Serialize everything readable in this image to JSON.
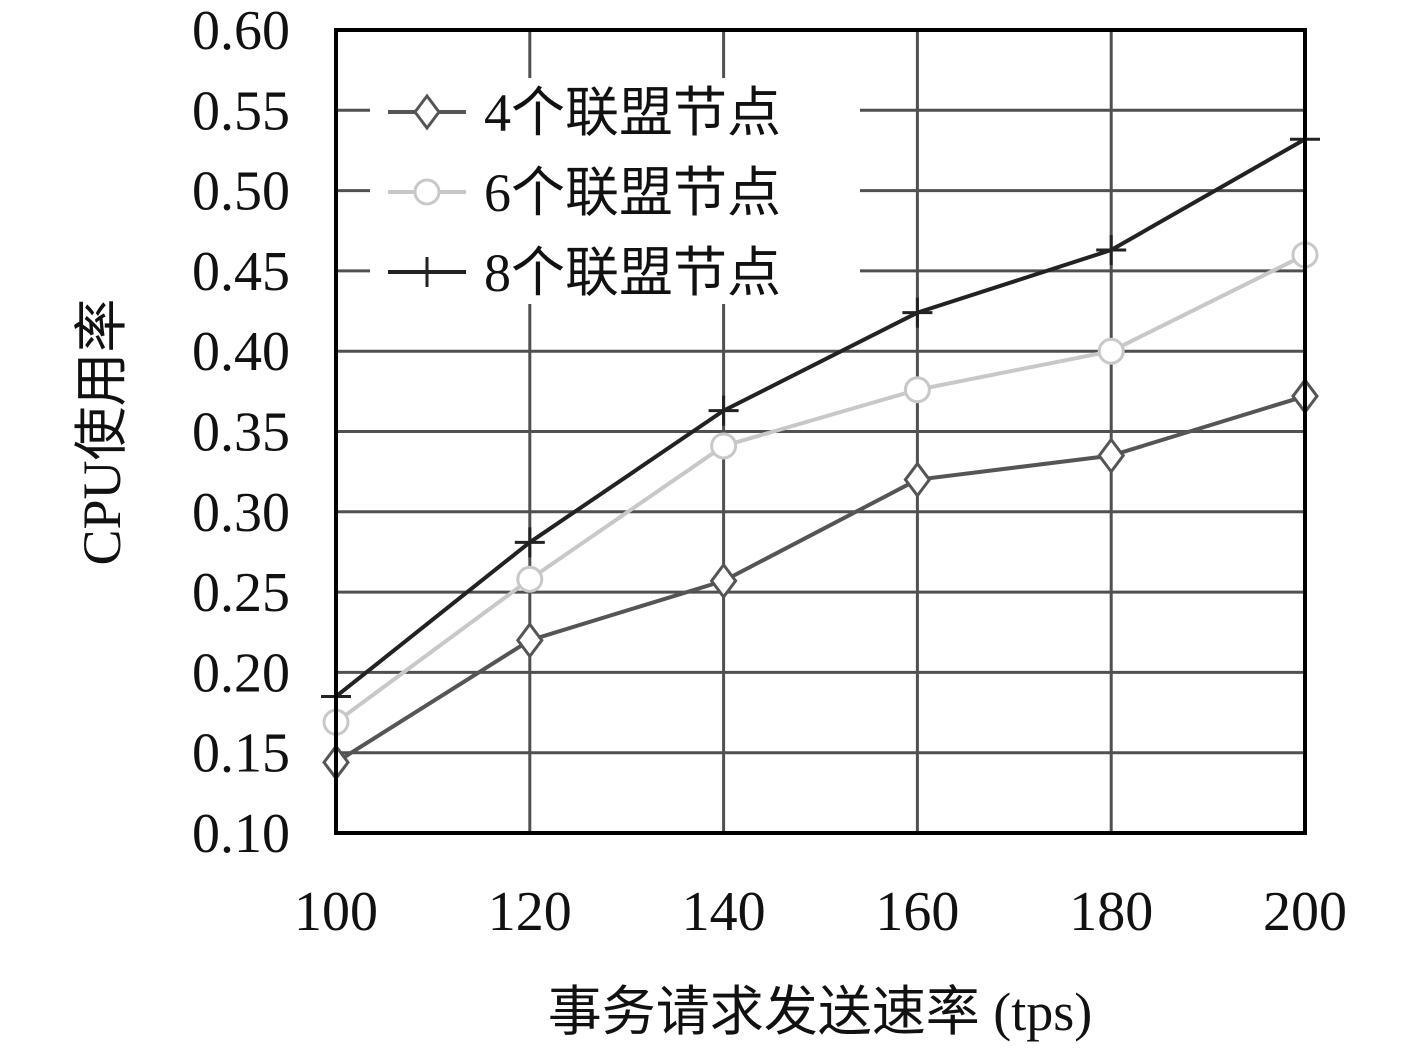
{
  "chart_data": {
    "type": "line",
    "title": "",
    "xlabel": "事务请求发送速率 (tps)",
    "ylabel": "CPU使用率",
    "x": [
      100,
      120,
      140,
      160,
      180,
      200
    ],
    "x_tick_labels": [
      "100",
      "120",
      "140",
      "160",
      "180",
      "200"
    ],
    "y_tick_labels": [
      "0.10",
      "0.15",
      "0.20",
      "0.25",
      "0.30",
      "0.35",
      "0.40",
      "0.45",
      "0.50",
      "0.55",
      "0.60"
    ],
    "xlim": [
      100,
      200
    ],
    "ylim": [
      0.1,
      0.6
    ],
    "grid": true,
    "legend_position": "top-left",
    "series": [
      {
        "name": "4个联盟节点",
        "marker": "diamond",
        "color": "#555555",
        "values": [
          0.144,
          0.22,
          0.257,
          0.32,
          0.335,
          0.372
        ]
      },
      {
        "name": "6个联盟节点",
        "marker": "circle",
        "color": "#c8c8c8",
        "values": [
          0.169,
          0.258,
          0.341,
          0.376,
          0.4,
          0.46
        ]
      },
      {
        "name": "8个联盟节点",
        "marker": "plus",
        "color": "#222222",
        "values": [
          0.185,
          0.281,
          0.363,
          0.424,
          0.463,
          0.532
        ]
      }
    ],
    "grid_color": "#505050",
    "axis_color": "#000000"
  }
}
